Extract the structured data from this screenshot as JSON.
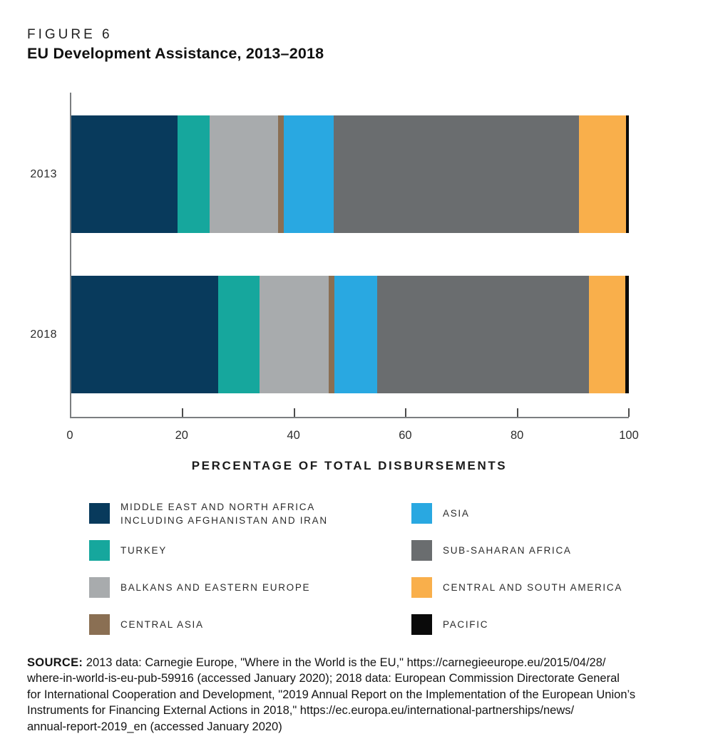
{
  "figure": {
    "label": "FIGURE 6",
    "title": "EU Development Assistance, 2013–2018"
  },
  "chart_data": {
    "type": "bar",
    "stacked": true,
    "orientation": "horizontal",
    "title": "EU Development Assistance, 2013–2018",
    "xlabel": "PERCENTAGE OF TOTAL DISBURSEMENTS",
    "ylabel": "",
    "xlim": [
      0,
      100
    ],
    "x_ticks": [
      0,
      20,
      40,
      60,
      80,
      100
    ],
    "grid": false,
    "legend_position": "bottom",
    "categories": [
      "2013",
      "2018"
    ],
    "series": [
      {
        "name": "Middle East and North Africa including Afghanistan and Iran",
        "color": "#083A5C",
        "values": [
          19.1,
          26.4
        ]
      },
      {
        "name": "Turkey",
        "color": "#16A79D",
        "values": [
          5.7,
          7.4
        ]
      },
      {
        "name": "Balkans and Eastern Europe",
        "color": "#A8ABAD",
        "values": [
          12.3,
          12.4
        ]
      },
      {
        "name": "Central Asia",
        "color": "#8A6F53",
        "values": [
          1.0,
          1.0
        ]
      },
      {
        "name": "Asia",
        "color": "#29A8E1",
        "values": [
          8.9,
          7.7
        ]
      },
      {
        "name": "Sub-Saharan Africa",
        "color": "#6A6D6F",
        "values": [
          44.0,
          37.9
        ]
      },
      {
        "name": "Central and South America",
        "color": "#F9AF4B",
        "values": [
          8.5,
          6.6
        ]
      },
      {
        "name": "Pacific",
        "color": "#0A0A0A",
        "values": [
          0.5,
          0.6
        ]
      }
    ]
  },
  "legend": {
    "columns": [
      [
        {
          "label": "MIDDLE EAST AND NORTH AFRICA\nINCLUDING AFGHANISTAN AND IRAN",
          "color": "#083A5C"
        },
        {
          "label": "TURKEY",
          "color": "#16A79D"
        },
        {
          "label": "BALKANS AND EASTERN EUROPE",
          "color": "#A8ABAD"
        },
        {
          "label": "CENTRAL ASIA",
          "color": "#8A6F53"
        }
      ],
      [
        {
          "label": "ASIA",
          "color": "#29A8E1"
        },
        {
          "label": "SUB-SAHARAN AFRICA",
          "color": "#6A6D6F"
        },
        {
          "label": "CENTRAL AND SOUTH AMERICA",
          "color": "#F9AF4B"
        },
        {
          "label": "PACIFIC",
          "color": "#0A0A0A"
        }
      ]
    ]
  },
  "source": {
    "label": "SOURCE:",
    "text": "2013 data: Carnegie Europe, \"Where in the World is the EU,\" https://carnegieeurope.eu/2015/04/28/\nwhere-in-world-is-eu-pub-59916 (accessed January 2020); 2018 data: European Commission Directorate General\nfor International Cooperation and Development, \"2019 Annual Report on the Implementation of the European Union’s\nInstruments for Financing External Actions in 2018,\" https://ec.europa.eu/international-partnerships/news/\nannual-report-2019_en (accessed January 2020)"
  }
}
